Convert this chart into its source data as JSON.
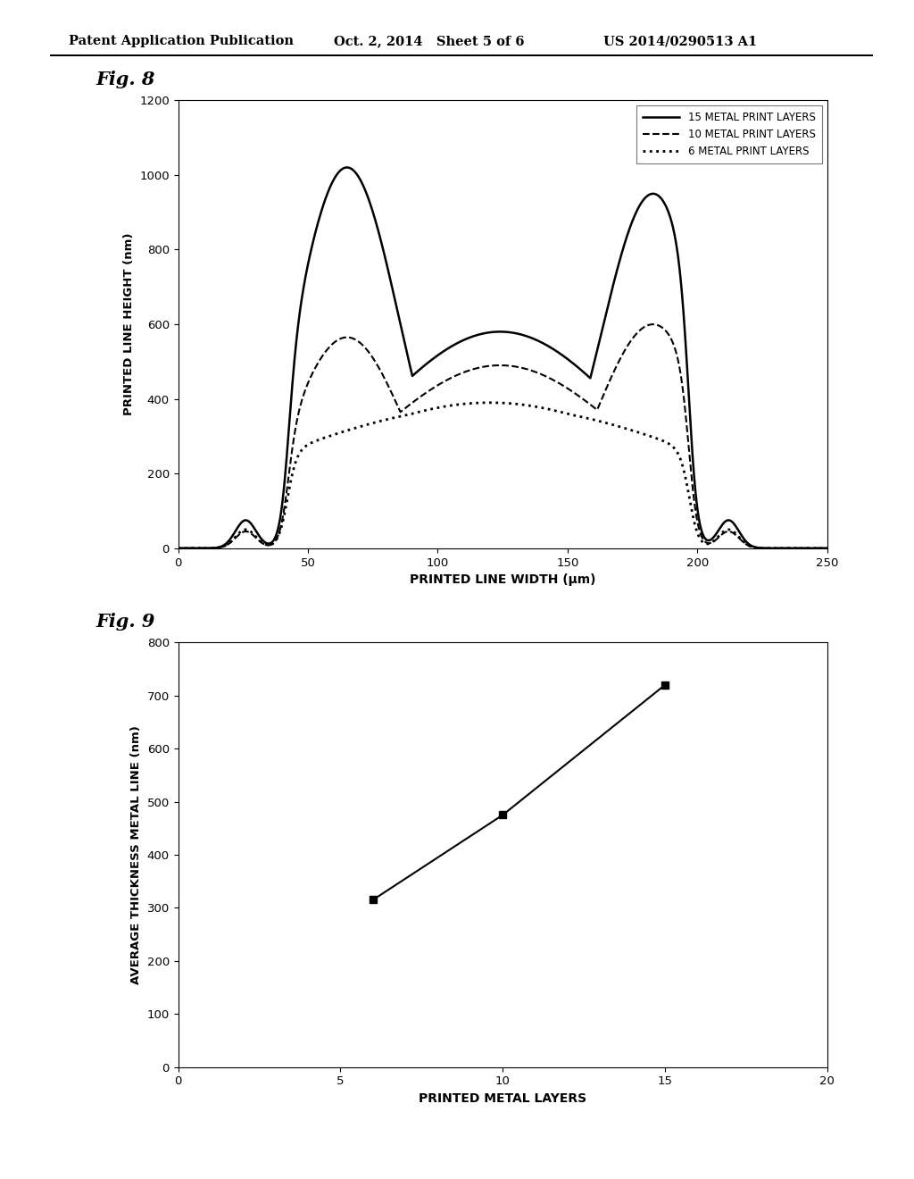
{
  "fig8_title": "Fig. 8",
  "fig9_title": "Fig. 9",
  "header_left": "Patent Application Publication",
  "header_mid": "Oct. 2, 2014   Sheet 5 of 6",
  "header_right": "US 2014/0290513 A1",
  "fig8": {
    "xlabel": "PRINTED LINE WIDTH (μm)",
    "ylabel": "PRINTED LINE HEIGHT (nm)",
    "xlim": [
      0,
      250
    ],
    "ylim": [
      0,
      1200
    ],
    "xticks": [
      0,
      50,
      100,
      150,
      200,
      250
    ],
    "yticks": [
      0,
      200,
      400,
      600,
      800,
      1000,
      1200
    ],
    "legend": [
      {
        "label": "15 METAL PRINT LAYERS",
        "linestyle": "solid",
        "color": "#000000",
        "linewidth": 1.8
      },
      {
        "label": "10 METAL PRINT LAYERS",
        "linestyle": "dashed",
        "color": "#000000",
        "linewidth": 1.5
      },
      {
        "label": "6 METAL PRINT LAYERS",
        "linestyle": "dotted",
        "color": "#000000",
        "linewidth": 2.0
      }
    ]
  },
  "fig9": {
    "xlabel": "PRINTED METAL LAYERS",
    "ylabel": "AVERAGE THICKNESS METAL LINE (nm)",
    "xlim": [
      0,
      20
    ],
    "ylim": [
      0,
      800
    ],
    "xticks": [
      0,
      5,
      10,
      15,
      20
    ],
    "yticks": [
      0,
      100,
      200,
      300,
      400,
      500,
      600,
      700,
      800
    ],
    "data_x": [
      6,
      10,
      15
    ],
    "data_y": [
      315,
      475,
      720
    ]
  },
  "background_color": "#ffffff",
  "text_color": "#000000"
}
